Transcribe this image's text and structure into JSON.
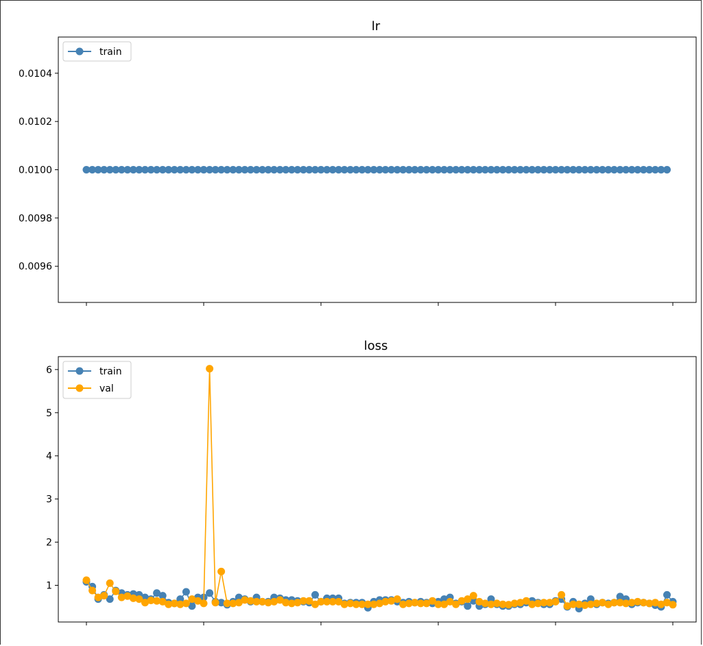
{
  "colors": {
    "train": "#4682b4",
    "val": "#ffa500",
    "axis": "#000000"
  },
  "chart_data": [
    {
      "type": "line",
      "title": "lr",
      "xlabel": "",
      "ylabel": "",
      "x_range": [
        0,
        99
      ],
      "ylim": [
        0.00945,
        0.01055
      ],
      "yticks": [
        0.0096,
        0.0098,
        0.01,
        0.0102,
        0.0104
      ],
      "ytick_labels": [
        "0.0096",
        "0.0098",
        "0.0100",
        "0.0102",
        "0.0104"
      ],
      "xticks": [
        0,
        20,
        40,
        60,
        80,
        100
      ],
      "legend": "upper-left",
      "series": [
        {
          "name": "train",
          "color": "#4682b4",
          "values": [
            0.01,
            0.01,
            0.01,
            0.01,
            0.01,
            0.01,
            0.01,
            0.01,
            0.01,
            0.01,
            0.01,
            0.01,
            0.01,
            0.01,
            0.01,
            0.01,
            0.01,
            0.01,
            0.01,
            0.01,
            0.01,
            0.01,
            0.01,
            0.01,
            0.01,
            0.01,
            0.01,
            0.01,
            0.01,
            0.01,
            0.01,
            0.01,
            0.01,
            0.01,
            0.01,
            0.01,
            0.01,
            0.01,
            0.01,
            0.01,
            0.01,
            0.01,
            0.01,
            0.01,
            0.01,
            0.01,
            0.01,
            0.01,
            0.01,
            0.01,
            0.01,
            0.01,
            0.01,
            0.01,
            0.01,
            0.01,
            0.01,
            0.01,
            0.01,
            0.01,
            0.01,
            0.01,
            0.01,
            0.01,
            0.01,
            0.01,
            0.01,
            0.01,
            0.01,
            0.01,
            0.01,
            0.01,
            0.01,
            0.01,
            0.01,
            0.01,
            0.01,
            0.01,
            0.01,
            0.01,
            0.01,
            0.01,
            0.01,
            0.01,
            0.01,
            0.01,
            0.01,
            0.01,
            0.01,
            0.01,
            0.01,
            0.01,
            0.01,
            0.01,
            0.01,
            0.01,
            0.01,
            0.01,
            0.01,
            0.01
          ]
        }
      ]
    },
    {
      "type": "line",
      "title": "loss",
      "xlabel": "",
      "ylabel": "",
      "x_range": [
        0,
        99
      ],
      "ylim": [
        0.15,
        6.3
      ],
      "yticks": [
        1,
        2,
        3,
        4,
        5,
        6
      ],
      "ytick_labels": [
        "1",
        "2",
        "3",
        "4",
        "5",
        "6"
      ],
      "xticks": [
        0,
        20,
        40,
        60,
        80,
        100
      ],
      "legend": "upper-left",
      "series": [
        {
          "name": "train",
          "color": "#4682b4",
          "values": [
            1.08,
            0.97,
            0.68,
            0.78,
            0.68,
            0.88,
            0.82,
            0.78,
            0.8,
            0.78,
            0.72,
            0.68,
            0.82,
            0.76,
            0.6,
            0.58,
            0.68,
            0.85,
            0.52,
            0.72,
            0.72,
            0.82,
            0.62,
            0.6,
            0.55,
            0.62,
            0.72,
            0.68,
            0.62,
            0.72,
            0.62,
            0.62,
            0.72,
            0.7,
            0.66,
            0.66,
            0.64,
            0.62,
            0.6,
            0.78,
            0.62,
            0.7,
            0.7,
            0.7,
            0.58,
            0.6,
            0.6,
            0.6,
            0.48,
            0.62,
            0.66,
            0.66,
            0.66,
            0.62,
            0.6,
            0.62,
            0.6,
            0.62,
            0.6,
            0.58,
            0.62,
            0.68,
            0.72,
            0.58,
            0.62,
            0.52,
            0.64,
            0.52,
            0.56,
            0.68,
            0.56,
            0.52,
            0.52,
            0.56,
            0.56,
            0.6,
            0.64,
            0.6,
            0.56,
            0.56,
            0.64,
            0.68,
            0.5,
            0.62,
            0.46,
            0.58,
            0.68,
            0.56,
            0.6,
            0.58,
            0.6,
            0.74,
            0.68,
            0.56,
            0.6,
            0.6,
            0.58,
            0.54,
            0.5,
            0.78,
            0.62
          ]
        },
        {
          "name": "val",
          "color": "#ffa500",
          "values": [
            1.12,
            0.88,
            0.72,
            0.76,
            1.05,
            0.86,
            0.72,
            0.75,
            0.7,
            0.68,
            0.6,
            0.65,
            0.64,
            0.62,
            0.56,
            0.58,
            0.56,
            0.58,
            0.68,
            0.64,
            0.58,
            6.02,
            0.6,
            1.32,
            0.58,
            0.58,
            0.6,
            0.66,
            0.64,
            0.62,
            0.62,
            0.6,
            0.62,
            0.66,
            0.6,
            0.58,
            0.6,
            0.64,
            0.64,
            0.56,
            0.62,
            0.62,
            0.62,
            0.62,
            0.56,
            0.58,
            0.56,
            0.56,
            0.56,
            0.56,
            0.58,
            0.62,
            0.64,
            0.68,
            0.56,
            0.58,
            0.6,
            0.58,
            0.58,
            0.64,
            0.56,
            0.56,
            0.62,
            0.56,
            0.64,
            0.68,
            0.76,
            0.62,
            0.58,
            0.56,
            0.58,
            0.56,
            0.55,
            0.58,
            0.6,
            0.64,
            0.56,
            0.58,
            0.6,
            0.6,
            0.62,
            0.78,
            0.52,
            0.56,
            0.56,
            0.54,
            0.56,
            0.58,
            0.6,
            0.56,
            0.6,
            0.6,
            0.58,
            0.6,
            0.62,
            0.6,
            0.58,
            0.6,
            0.56,
            0.6,
            0.55
          ]
        }
      ]
    }
  ]
}
